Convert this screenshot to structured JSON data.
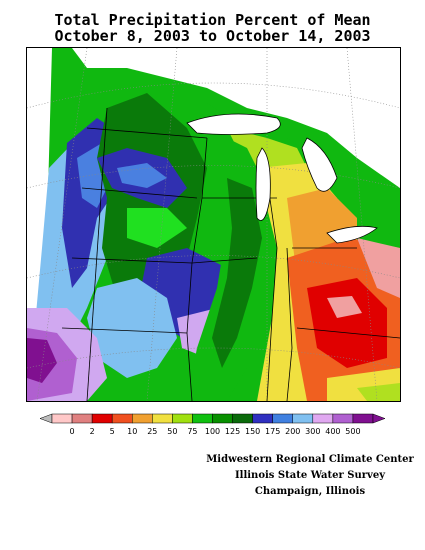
{
  "title": {
    "line1": "Total Precipitation Percent of Mean",
    "line2": "October 8, 2003 to October 14, 2003"
  },
  "legend": {
    "labels": [
      "0",
      "2",
      "5",
      "10",
      "25",
      "50",
      "75",
      "100",
      "125",
      "150",
      "175",
      "200",
      "300",
      "400",
      "500"
    ],
    "colors": [
      "#ffc8c8",
      "#e08080",
      "#e00000",
      "#f05020",
      "#f0a030",
      "#f0e040",
      "#a0e010",
      "#10c010",
      "#089000",
      "#0a6a0a",
      "#3030c0",
      "#4080e0",
      "#80c0f0",
      "#e0a8f0",
      "#b060d0",
      "#801090"
    ],
    "left_arrow_color": "#bbbbbb",
    "right_arrow_color": "#801090"
  },
  "credits": {
    "line1": "Midwestern Regional Climate Center",
    "line2": "Illinois State Water Survey",
    "line3": "Champaign, Illinois"
  },
  "map_colors": {
    "dark_green": "#0a7a0a",
    "green": "#10b810",
    "bright_green": "#20e020",
    "yellow_green": "#b0e020",
    "yellow": "#f0e040",
    "gold": "#f0a030",
    "orange": "#f06020",
    "red": "#e00000",
    "pink": "#f0a0a0",
    "navy": "#3030b0",
    "blue": "#4a80e0",
    "light_blue": "#80c0f0",
    "lavender": "#d0a8f0",
    "violet": "#b060d0",
    "purple": "#801090"
  }
}
